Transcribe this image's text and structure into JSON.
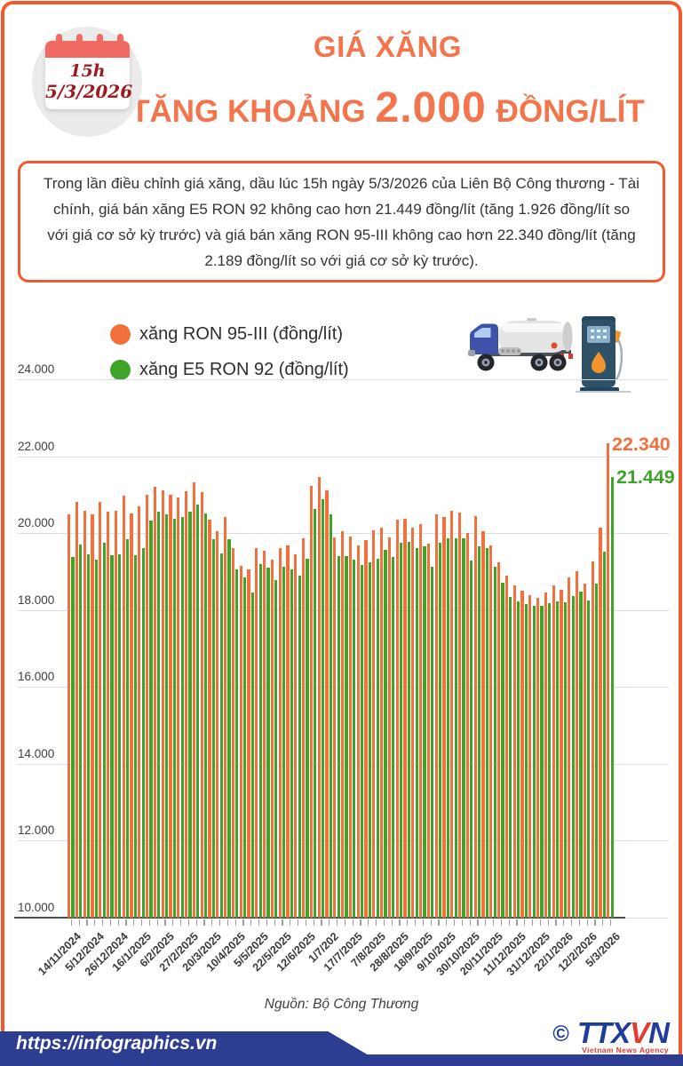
{
  "colors": {
    "accent_orange": "#F2592E",
    "title_orange": "#F4744C",
    "bar_orange": "#F2703C",
    "bar_green": "#3FA32A",
    "banner_blue": "#2C3D92",
    "agency_blue": "#1E3C99",
    "agency_red": "#E23B34",
    "calendar_band_red": "#F16A64",
    "calendar_text_red": "#9B1B1F"
  },
  "header": {
    "calendar_time": "15h",
    "calendar_date": "5/3/2026",
    "title": "GIÁ XĂNG",
    "subtitle_prefix": "TĂNG KHOẢNG",
    "subtitle_amount": "2.000",
    "subtitle_suffix": "ĐỒNG/LÍT"
  },
  "summary": {
    "text": "Trong lần điều chỉnh giá xăng, dầu lúc 15h ngày 5/3/2026 của Liên Bộ Công thương - Tài chính, giá bán xăng E5 RON 92 không cao hơn 21.449 đồng/lít (tăng 1.926 đồng/lít so với giá cơ sở kỳ trước) và giá bán xăng RON 95-III không cao hơn 22.340 đồng/lít (tăng 2.189 đồng/lít so với giá cơ sở kỳ trước)."
  },
  "legend": {
    "items": [
      {
        "label": "xăng RON 95-III (đồng/lít)",
        "color": "#F2703C"
      },
      {
        "label": "xăng E5 RON 92 (đồng/lít)",
        "color": "#3FA32A"
      }
    ]
  },
  "chart_data": {
    "type": "bar",
    "title": "",
    "ylim": [
      10000,
      24000
    ],
    "ytick_step": 2000,
    "grid": true,
    "legend_position": "top-left",
    "points": 70,
    "label_every": 3,
    "tick_labels": [
      "14/11/2024",
      "5/12/2024",
      "26/12/2024",
      "16/1/2025",
      "6/2/2025",
      "27/2/2025",
      "20/3/2025",
      "10/4/2025",
      "5/5/2025",
      "22/5/2025",
      "12/6/2025",
      "1/7/202",
      "17/7/2025",
      "7/8/2025",
      "28/8/2025",
      "18/9/2025",
      "9/10/2025",
      "30/10/2025",
      "20/11/2025",
      "11/12/2025",
      "31/12/2025",
      "22/1/2026",
      "12/2/2026",
      "5/3/2026"
    ],
    "series": [
      {
        "name": "xăng RON 95-III (đồng/lít)",
        "color": "#F2703C",
        "values": [
          20480,
          20820,
          20570,
          20500,
          20820,
          20550,
          20570,
          20970,
          20510,
          20700,
          21000,
          21200,
          21120,
          20990,
          20920,
          21080,
          21310,
          21070,
          20360,
          20060,
          20420,
          19620,
          19160,
          19050,
          19620,
          19550,
          19300,
          19600,
          19690,
          19460,
          19860,
          21230,
          21460,
          21120,
          19890,
          20040,
          19920,
          19690,
          19810,
          20080,
          20150,
          19880,
          20350,
          20380,
          20150,
          20230,
          19730,
          20500,
          20410,
          20590,
          20540,
          20000,
          20440,
          20040,
          19690,
          19250,
          18890,
          18650,
          18500,
          18390,
          18310,
          18460,
          18640,
          18520,
          18850,
          19000,
          18680,
          19270,
          20150,
          22340
        ]
      },
      {
        "name": "xăng E5 RON 92 (đồng/lít)",
        "color": "#3FA32A",
        "values": [
          19390,
          19700,
          19450,
          19320,
          19740,
          19430,
          19460,
          19850,
          19420,
          19600,
          20330,
          20550,
          20480,
          20380,
          20420,
          20560,
          20740,
          20520,
          19850,
          19480,
          19850,
          19060,
          18850,
          18460,
          19190,
          19100,
          18790,
          19130,
          19060,
          18900,
          19340,
          20620,
          20890,
          20500,
          19410,
          19400,
          19310,
          19180,
          19250,
          19340,
          19560,
          19380,
          19750,
          19770,
          19620,
          19650,
          19120,
          19750,
          19870,
          19870,
          19860,
          19290,
          19660,
          19620,
          19120,
          18710,
          18350,
          18230,
          18150,
          18120,
          18100,
          18170,
          18230,
          18190,
          18360,
          18480,
          18250,
          18690,
          19520,
          21449
        ]
      }
    ],
    "annotations": [
      {
        "text": "22.340",
        "color": "#F2703C"
      },
      {
        "text": "21.449",
        "color": "#3FA32A"
      }
    ]
  },
  "footer": {
    "source": "Nguồn: Bộ Công Thương",
    "site_url": "https://infographics.vn",
    "copyright": "©",
    "agency_blue1": "TTX",
    "agency_red": "V",
    "agency_blue2": "N",
    "agency_caption": "Vietnam News Agency"
  }
}
